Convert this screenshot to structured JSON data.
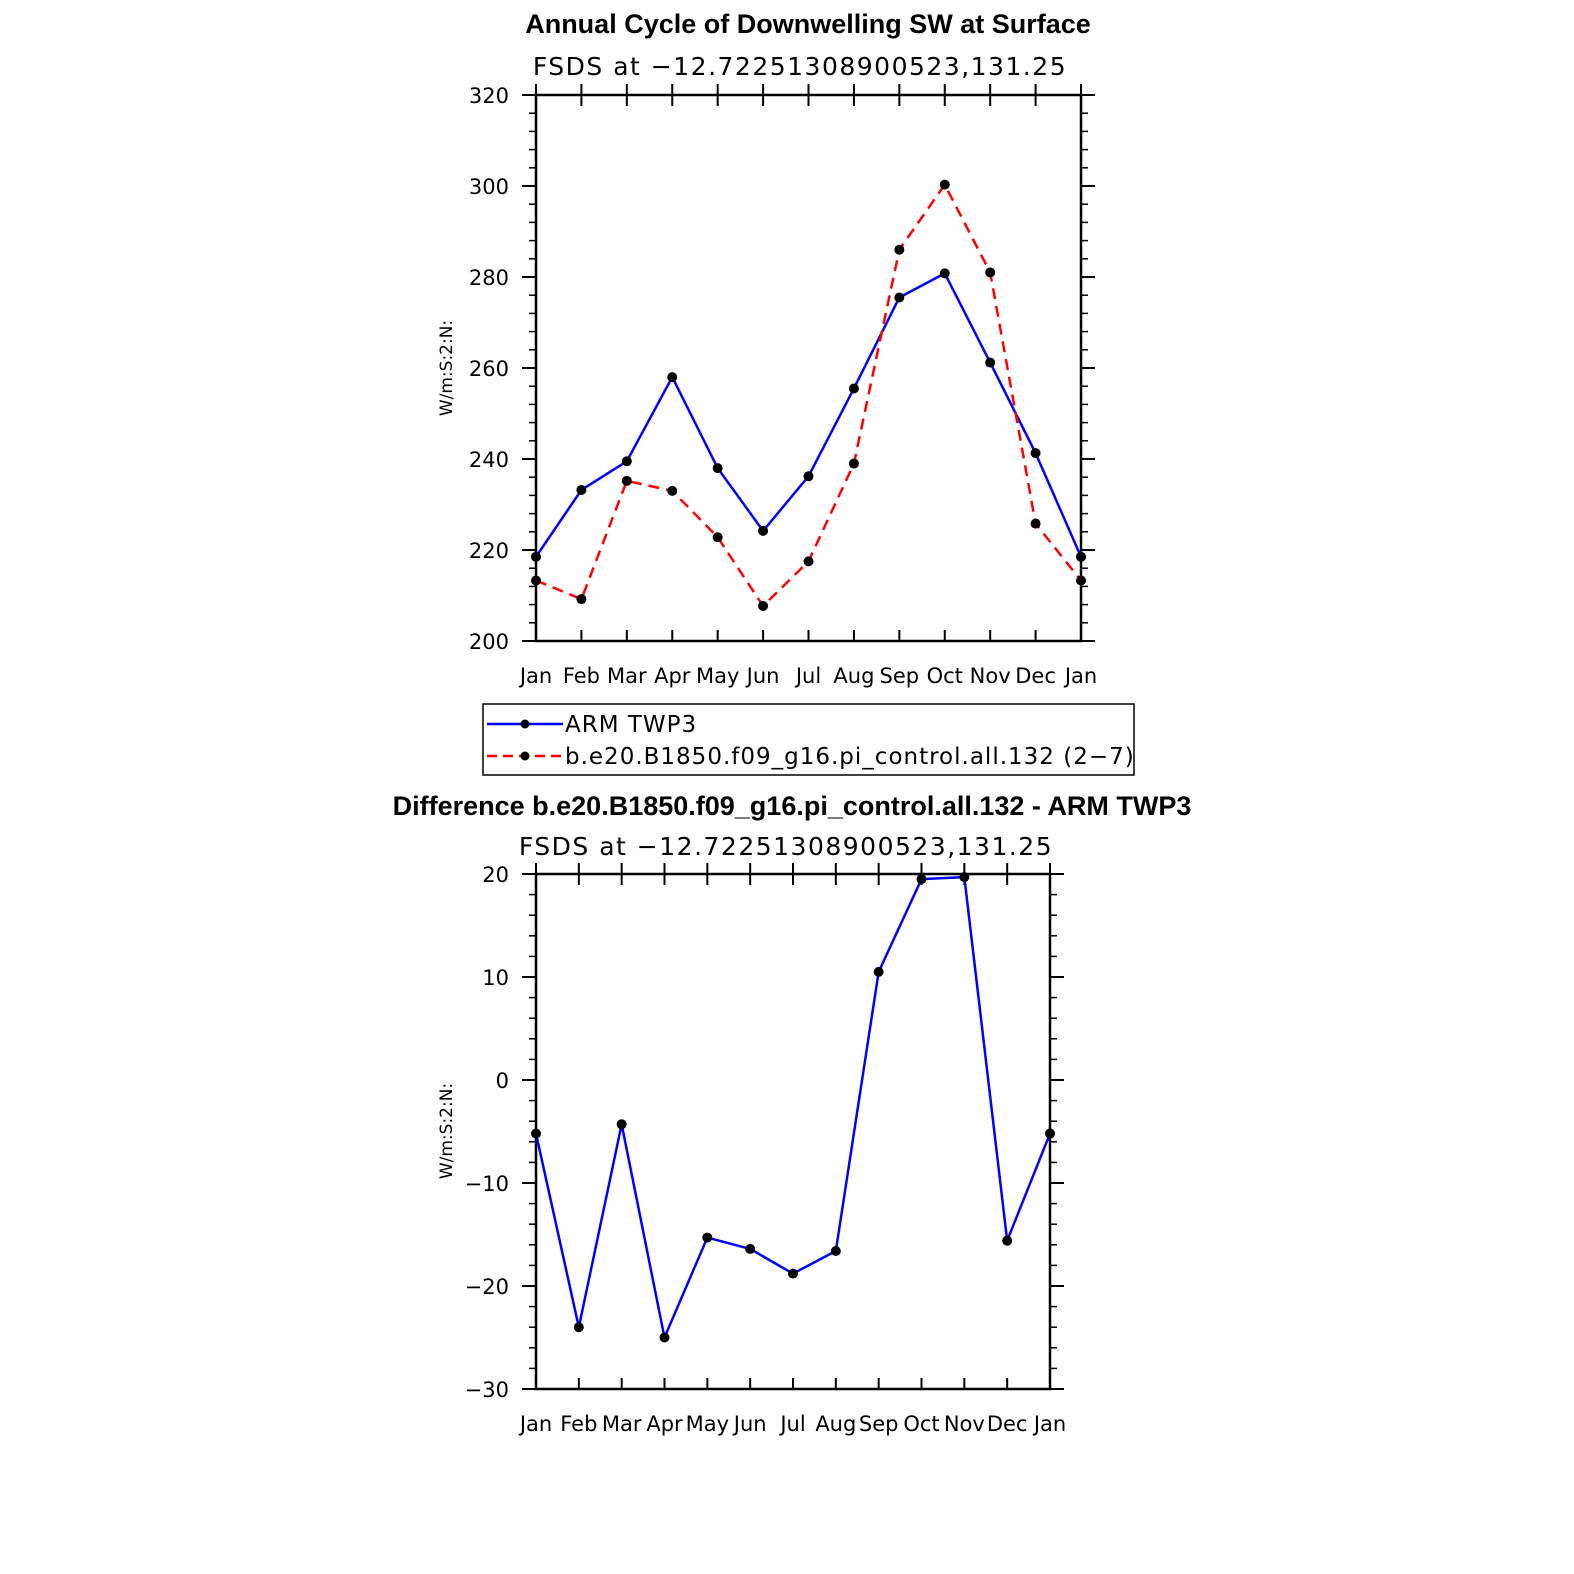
{
  "chart_data": [
    {
      "type": "line",
      "title": "Annual Cycle of Downwelling SW at Surface",
      "subtitle": "FSDS at −12.72251308900523,131.25",
      "ylabel": "W/m:S:2:N:",
      "xlabel": "",
      "categories": [
        "Jan",
        "Feb",
        "Mar",
        "Apr",
        "May",
        "Jun",
        "Jul",
        "Aug",
        "Sep",
        "Oct",
        "Nov",
        "Dec",
        "Jan"
      ],
      "ylim": [
        200,
        320
      ],
      "yticks": [
        "200",
        "220",
        "240",
        "260",
        "280",
        "300",
        "320"
      ],
      "series": [
        {
          "name": "ARM TWP3",
          "color": "#0000ff",
          "dashed": false,
          "values": [
            218.5,
            233.2,
            239.5,
            258.0,
            238.0,
            224.2,
            236.2,
            255.5,
            275.5,
            280.8,
            261.2,
            241.3,
            218.5
          ]
        },
        {
          "name": "b.e20.B1850.f09_g16.pi_control.all.132 (2−7)",
          "color": "#ff0000",
          "dashed": true,
          "values": [
            213.3,
            209.2,
            235.2,
            233.0,
            222.8,
            207.7,
            217.5,
            239.0,
            286.0,
            300.3,
            281.0,
            225.8,
            213.3
          ]
        }
      ],
      "grid": false,
      "legend": "below"
    },
    {
      "type": "line",
      "title": "Difference b.e20.B1850.f09_g16.pi_control.all.132 - ARM TWP3",
      "subtitle": "FSDS at −12.72251308900523,131.25",
      "ylabel": "W/m:S:2:N:",
      "xlabel": "",
      "categories": [
        "Jan",
        "Feb",
        "Mar",
        "Apr",
        "May",
        "Jun",
        "Jul",
        "Aug",
        "Sep",
        "Oct",
        "Nov",
        "Dec",
        "Jan"
      ],
      "ylim": [
        -30,
        20
      ],
      "yticks": [
        "−30",
        "−20",
        "−10",
        "0",
        "10",
        "20"
      ],
      "series": [
        {
          "color": "#0000ff",
          "dashed": false,
          "values": [
            -5.2,
            -24.0,
            -4.3,
            -25.0,
            -15.3,
            -16.4,
            -18.8,
            -16.6,
            10.5,
            19.5,
            19.7,
            -15.6,
            -5.2
          ]
        }
      ],
      "grid": false
    }
  ]
}
